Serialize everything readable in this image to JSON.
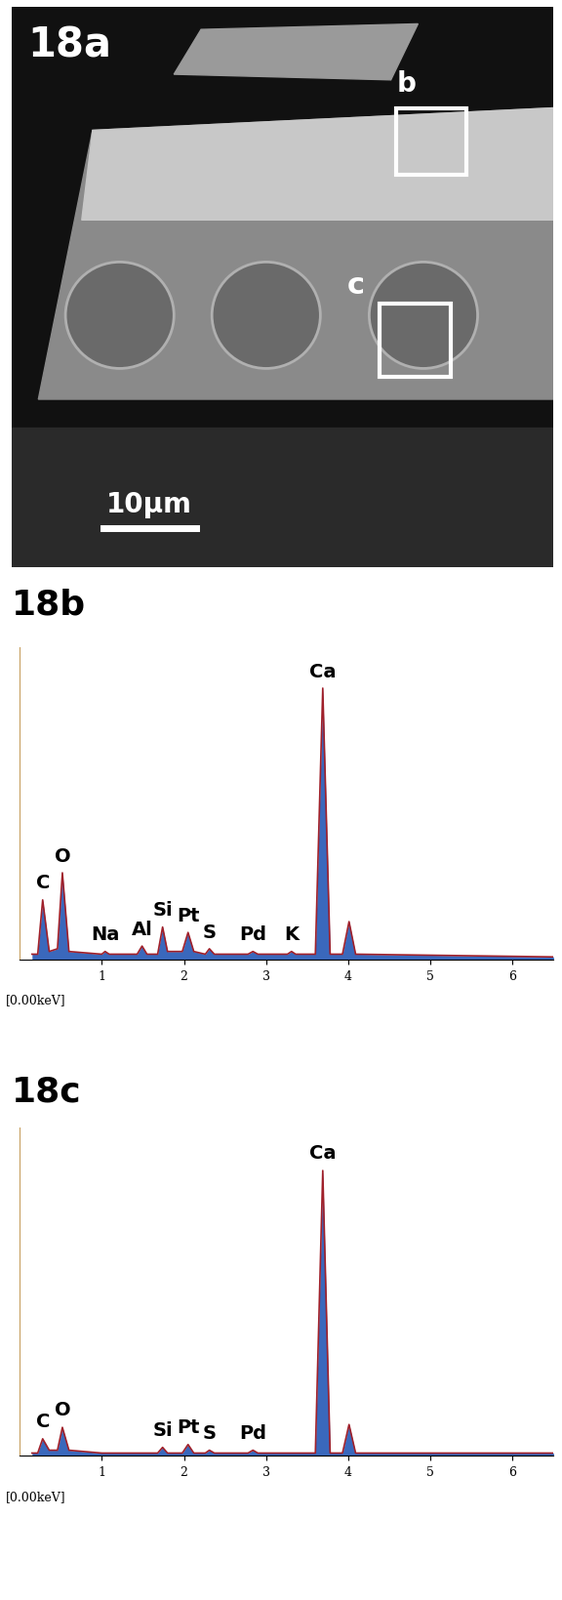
{
  "image": {
    "panel_label": "18a",
    "region_labels": [
      "b",
      "c"
    ],
    "scale_bar": "10μm"
  },
  "chart_data": [
    {
      "type": "area",
      "title": "18b",
      "origin_label": "[0.00keV]",
      "color": "#2457b5",
      "x": [
        0.15,
        0.22,
        0.28,
        0.36,
        0.46,
        0.52,
        0.6,
        1.0,
        1.04,
        1.09,
        1.43,
        1.49,
        1.55,
        1.68,
        1.74,
        1.8,
        1.98,
        2.05,
        2.12,
        2.26,
        2.31,
        2.37,
        2.78,
        2.84,
        2.9,
        3.26,
        3.31,
        3.36,
        3.6,
        3.69,
        3.78,
        3.93,
        4.01,
        4.09,
        6.5
      ],
      "values": [
        2,
        2,
        22,
        3,
        4,
        32,
        3,
        2,
        3,
        2,
        2,
        5,
        2,
        2,
        12,
        3,
        3,
        10,
        3,
        2,
        4,
        2,
        2,
        3,
        2,
        2,
        3,
        2,
        2,
        100,
        2,
        2,
        14,
        2,
        1
      ],
      "xlim": [
        0,
        6.5
      ],
      "ylim": [
        0,
        115
      ],
      "xticks": [
        1,
        2,
        3,
        4,
        5,
        6
      ],
      "tick_labels": "x",
      "peak_labels": [
        {
          "text": "C",
          "x": 0.28
        },
        {
          "text": "O",
          "x": 0.52
        },
        {
          "text": "Na",
          "x": 1.04
        },
        {
          "text": "Al",
          "x": 1.49
        },
        {
          "text": "Si",
          "x": 1.74
        },
        {
          "text": "Pt",
          "x": 2.05
        },
        {
          "text": "S",
          "x": 2.31
        },
        {
          "text": "Pd",
          "x": 2.84
        },
        {
          "text": "K",
          "x": 3.31
        },
        {
          "text": "Ca",
          "x": 3.69
        }
      ]
    },
    {
      "type": "area",
      "title": "18c",
      "origin_label": "[0.00keV]",
      "color": "#2457b5",
      "x": [
        0.15,
        0.22,
        0.28,
        0.36,
        0.46,
        0.52,
        0.6,
        1.0,
        1.04,
        1.09,
        1.43,
        1.49,
        1.55,
        1.68,
        1.74,
        1.8,
        1.98,
        2.05,
        2.12,
        2.26,
        2.31,
        2.37,
        2.78,
        2.84,
        2.9,
        3.26,
        3.31,
        3.36,
        3.6,
        3.69,
        3.78,
        3.93,
        4.01,
        4.09,
        6.5
      ],
      "values": [
        1,
        1,
        6,
        2,
        2,
        10,
        2,
        1,
        1,
        1,
        1,
        1,
        1,
        1,
        3,
        1,
        1,
        4,
        1,
        1,
        2,
        1,
        1,
        2,
        1,
        1,
        1,
        1,
        1,
        100,
        1,
        1,
        11,
        1,
        1
      ],
      "xlim": [
        0,
        6.5
      ],
      "ylim": [
        0,
        115
      ],
      "xticks": [
        1,
        2,
        3,
        4,
        5,
        6
      ],
      "tick_labels": "x",
      "peak_labels": [
        {
          "text": "C",
          "x": 0.28
        },
        {
          "text": "O",
          "x": 0.52
        },
        {
          "text": "Si",
          "x": 1.74
        },
        {
          "text": "Pt",
          "x": 2.05
        },
        {
          "text": "S",
          "x": 2.31
        },
        {
          "text": "Pd",
          "x": 2.84
        },
        {
          "text": "Ca",
          "x": 3.69
        }
      ]
    }
  ]
}
